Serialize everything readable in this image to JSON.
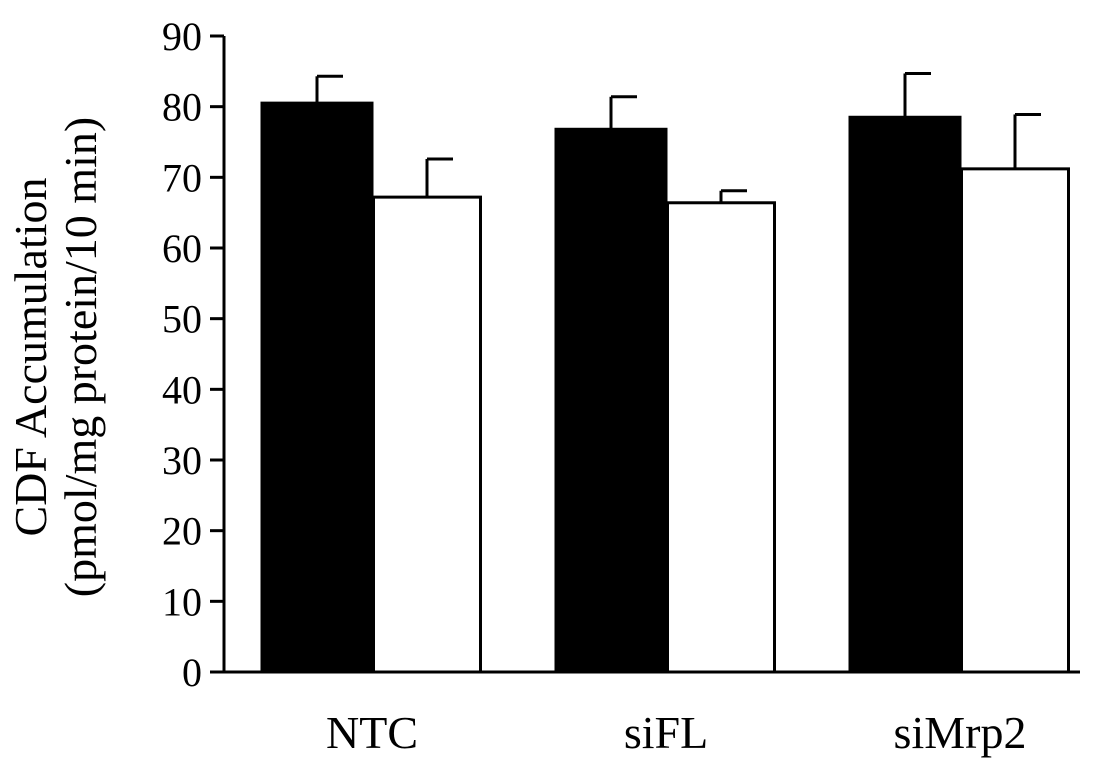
{
  "chart_data": {
    "type": "bar",
    "categories": [
      "NTC",
      "siFL",
      "siMrp2"
    ],
    "series": [
      {
        "color": "#000000",
        "values": [
          80.5,
          76.8,
          78.5
        ],
        "error": [
          3.8,
          4.6,
          6.2
        ]
      },
      {
        "color": "#ffffff",
        "values": [
          67.2,
          66.4,
          71.2
        ],
        "error": [
          5.4,
          1.7,
          7.7
        ]
      }
    ],
    "ylabel_lines": [
      "CDF Accumulation",
      "(pmol/mg protein/10 min)"
    ],
    "xlabel": "",
    "ylim": [
      0,
      90
    ],
    "yticks": [
      0,
      10,
      20,
      30,
      40,
      50,
      60,
      70,
      80,
      90
    ],
    "grid": false,
    "legend": "none"
  }
}
